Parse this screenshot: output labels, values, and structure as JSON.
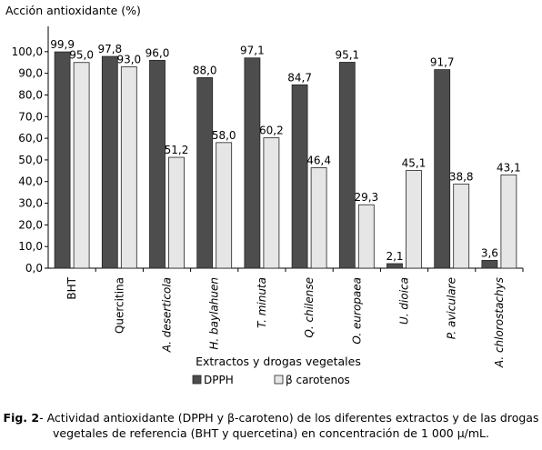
{
  "chart_data": {
    "type": "bar",
    "ylabel": "Acción antioxidante (%)",
    "xlabel": "Extractos y drogas vegetales",
    "ylim": [
      0,
      110
    ],
    "yticks": [
      "0,0",
      "10,0",
      "20,0",
      "30,0",
      "40,0",
      "50,0",
      "60,0",
      "70,0",
      "80,0",
      "90,0",
      "100,0"
    ],
    "categories": [
      "BHT",
      "Quercitina",
      "A. deserticola",
      "H. baylahuen",
      "T. minuta",
      "Q. chilense",
      "O. europaea",
      "U. dioica",
      "P. aviculare",
      "A. chlorostachys"
    ],
    "categories_italic": [
      false,
      false,
      true,
      true,
      true,
      true,
      true,
      true,
      true,
      true
    ],
    "series": [
      {
        "name": "DPPH",
        "color": "#4d4d4d",
        "values": [
          99.9,
          97.8,
          96.0,
          88.0,
          97.1,
          84.7,
          95.1,
          2.1,
          91.7,
          3.6
        ],
        "labels": [
          "99,9",
          "97,8",
          "96,0",
          "88,0",
          "97,1",
          "84,7",
          "95,1",
          "2,1",
          "91,7",
          "3,6"
        ]
      },
      {
        "name": "β carotenos",
        "color": "#e6e6e6",
        "values": [
          95.0,
          93.0,
          51.2,
          58.0,
          60.2,
          46.4,
          29.3,
          45.1,
          38.8,
          43.1
        ],
        "labels": [
          "95,0",
          "93,0",
          "51,2",
          "58,0",
          "60,2",
          "46,4",
          "29,3",
          "45,1",
          "38,8",
          "43,1"
        ]
      }
    ],
    "grid": false,
    "legend_position": "bottom"
  },
  "caption": {
    "prefix": "Fig. 2",
    "text": "- Actividad antioxidante (DPPH y β-caroteno) de los diferentes extractos y de las drogas vegetales de referencia (BHT y quercetina) en concentración de 1 000 μ/mL."
  }
}
